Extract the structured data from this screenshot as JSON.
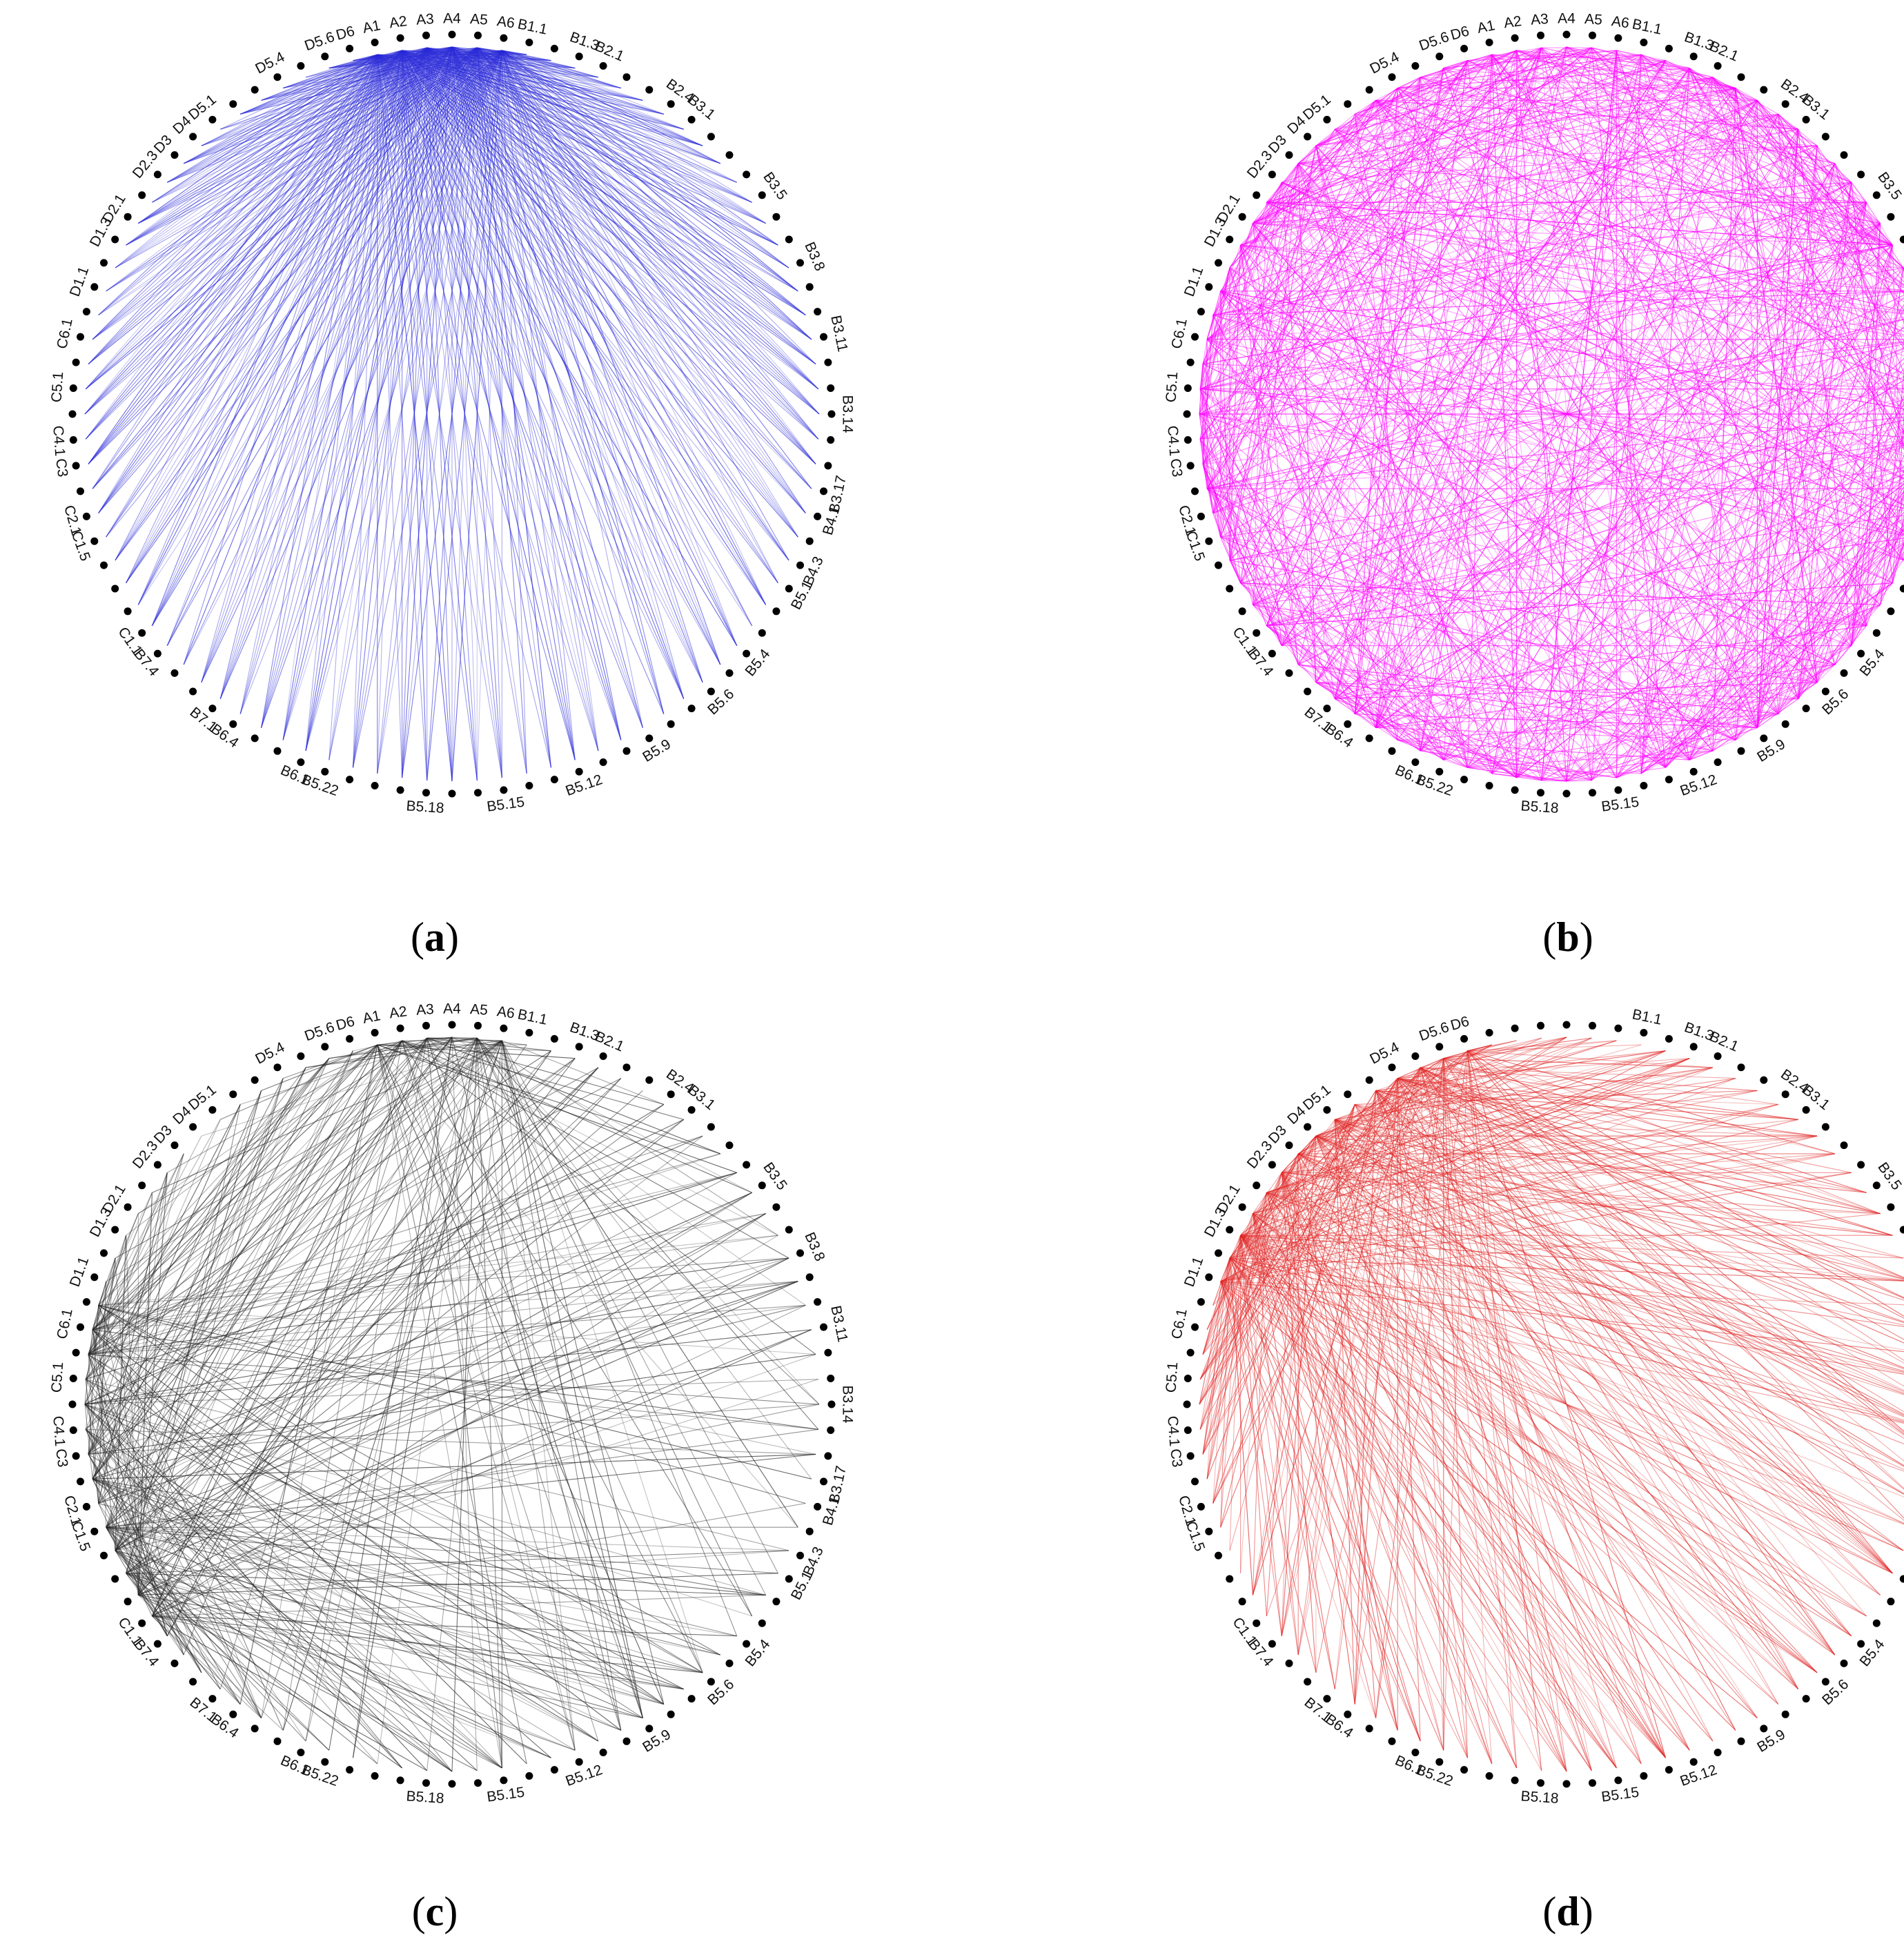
{
  "figure": {
    "nodes": [
      {
        "id": "A1"
      },
      {
        "id": "A2"
      },
      {
        "id": "A3"
      },
      {
        "id": "A4"
      },
      {
        "id": "A5"
      },
      {
        "id": "A6"
      },
      {
        "id": "B1.1"
      },
      {
        "id": "B1.2"
      },
      {
        "id": "B1.3"
      },
      {
        "id": "B2.1"
      },
      {
        "id": "B2.2"
      },
      {
        "id": "B2.3"
      },
      {
        "id": "B2.4"
      },
      {
        "id": "B3.1"
      },
      {
        "id": "B3.2"
      },
      {
        "id": "B3.3"
      },
      {
        "id": "B3.4"
      },
      {
        "id": "B3.5"
      },
      {
        "id": "B3.6"
      },
      {
        "id": "B3.7"
      },
      {
        "id": "B3.8"
      },
      {
        "id": "B3.9"
      },
      {
        "id": "B3.10"
      },
      {
        "id": "B3.11"
      },
      {
        "id": "B3.12"
      },
      {
        "id": "B3.13"
      },
      {
        "id": "B3.14"
      },
      {
        "id": "B3.15"
      },
      {
        "id": "B3.16"
      },
      {
        "id": "B3.17"
      },
      {
        "id": "B4.1"
      },
      {
        "id": "B4.2"
      },
      {
        "id": "B4.3"
      },
      {
        "id": "B5.1"
      },
      {
        "id": "B5.2"
      },
      {
        "id": "B5.3"
      },
      {
        "id": "B5.4"
      },
      {
        "id": "B5.5"
      },
      {
        "id": "B5.6"
      },
      {
        "id": "B5.7"
      },
      {
        "id": "B5.8"
      },
      {
        "id": "B5.9"
      },
      {
        "id": "B5.10"
      },
      {
        "id": "B5.11"
      },
      {
        "id": "B5.12"
      },
      {
        "id": "B5.13"
      },
      {
        "id": "B5.14"
      },
      {
        "id": "B5.15"
      },
      {
        "id": "B5.16"
      },
      {
        "id": "B5.17"
      },
      {
        "id": "B5.18"
      },
      {
        "id": "B5.19"
      },
      {
        "id": "B5.20"
      },
      {
        "id": "B5.21"
      },
      {
        "id": "B5.22"
      },
      {
        "id": "B6.1"
      },
      {
        "id": "B6.2"
      },
      {
        "id": "B6.3"
      },
      {
        "id": "B6.4"
      },
      {
        "id": "B7.1"
      },
      {
        "id": "B7.2"
      },
      {
        "id": "B7.3"
      },
      {
        "id": "B7.4"
      },
      {
        "id": "C1.1"
      },
      {
        "id": "C1.2"
      },
      {
        "id": "C1.3"
      },
      {
        "id": "C1.4"
      },
      {
        "id": "C1.5"
      },
      {
        "id": "C2.1"
      },
      {
        "id": "C2.2"
      },
      {
        "id": "C3"
      },
      {
        "id": "C4.1"
      },
      {
        "id": "C4.2"
      },
      {
        "id": "C5.1"
      },
      {
        "id": "C5.2"
      },
      {
        "id": "C6.1"
      },
      {
        "id": "C6.2"
      },
      {
        "id": "D1.1"
      },
      {
        "id": "D1.2"
      },
      {
        "id": "D1.3"
      },
      {
        "id": "D2.1"
      },
      {
        "id": "D2.2"
      },
      {
        "id": "D2.3"
      },
      {
        "id": "D3"
      },
      {
        "id": "D4"
      },
      {
        "id": "D5.1"
      },
      {
        "id": "D5.2"
      },
      {
        "id": "D5.3"
      },
      {
        "id": "D5.4"
      },
      {
        "id": "D5.5"
      },
      {
        "id": "D5.6"
      },
      {
        "id": "D6"
      }
    ],
    "labels": {
      "a": [
        "A1",
        "A2",
        "A3",
        "A4",
        "A5",
        "A6",
        "B1.1",
        "B1.3",
        "B2.1",
        "B2.4",
        "B3.1",
        "B3.5",
        "B3.8",
        "B3.11",
        "B3.14",
        "B3.17",
        "B4.1",
        "B4.3",
        "B5.1",
        "B5.4",
        "B5.6",
        "B5.9",
        "B5.12",
        "B5.15",
        "B5.18",
        "B5.22",
        "B6.1",
        "B6.4",
        "B7.1",
        "B7.4",
        "C1.1",
        "C1.5",
        "C2.1",
        "C3",
        "C4.1",
        "C5.1",
        "C6.1",
        "D1.1",
        "D1.3",
        "D2.1",
        "D2.3",
        "D3",
        "D4",
        "D5.1",
        "D5.4",
        "D5.6",
        "D6"
      ],
      "b": [
        "A1",
        "A2",
        "A3",
        "A4",
        "A5",
        "A6",
        "B1.1",
        "B1.3",
        "B2.1",
        "B2.4",
        "B3.1",
        "B3.5",
        "B3.8",
        "B3.11",
        "B3.14",
        "B3.17",
        "B4.1",
        "B4.3",
        "B5.1",
        "B5.4",
        "B5.6",
        "B5.9",
        "B5.12",
        "B5.15",
        "B5.18",
        "B5.22",
        "B6.1",
        "B6.4",
        "B7.1",
        "B7.4",
        "C1.1",
        "C1.5",
        "C2.1",
        "C3",
        "C4.1",
        "C5.1",
        "C6.1",
        "D1.1",
        "D1.3",
        "D2.1",
        "D2.3",
        "D3",
        "D4",
        "D5.1",
        "D5.4",
        "D5.6",
        "D6"
      ],
      "c": [
        "A1",
        "A2",
        "A3",
        "A4",
        "A5",
        "A6",
        "B1.1",
        "B1.3",
        "B2.1",
        "B2.4",
        "B3.1",
        "B3.5",
        "B3.8",
        "B3.11",
        "B3.14",
        "B3.17",
        "B4.1",
        "B4.3",
        "B5.1",
        "B5.4",
        "B5.6",
        "B5.9",
        "B5.12",
        "B5.15",
        "B5.18",
        "B5.22",
        "B6.1",
        "B6.4",
        "B7.1",
        "B7.4",
        "C1.1",
        "C1.5",
        "C2.1",
        "C3",
        "C4.1",
        "C5.1",
        "C6.1",
        "D1.1",
        "D1.3",
        "D2.1",
        "D2.3",
        "D3",
        "D4",
        "D5.1",
        "D5.4",
        "D5.6",
        "D6"
      ],
      "d": [
        "B1.1",
        "B1.3",
        "B2.1",
        "B2.4",
        "B3.1",
        "B3.5",
        "B3.8",
        "B3.11",
        "B3.14",
        "B3.17",
        "B4.1",
        "B4.3",
        "B5.1",
        "B5.4",
        "B5.6",
        "B5.9",
        "B5.12",
        "B5.15",
        "B5.18",
        "B5.22",
        "B6.1",
        "B6.4",
        "B7.1",
        "B7.4",
        "C1.1",
        "C1.5",
        "C2.1",
        "C3",
        "C4.1",
        "C5.1",
        "C6.1",
        "D1.1",
        "D1.3",
        "D2.1",
        "D2.3",
        "D3",
        "D4",
        "D5.1",
        "D5.4",
        "D5.6",
        "D6"
      ]
    },
    "node_color": "#000000",
    "panels": [
      {
        "id": "a",
        "caption": "(a)",
        "caption_open": "(",
        "caption_letter": "a",
        "caption_close": ")",
        "edge_color": "#2a2ad8",
        "hub_groups": [
          "A"
        ]
      },
      {
        "id": "b",
        "caption": "(b)",
        "caption_open": "(",
        "caption_letter": "b",
        "caption_close": ")",
        "edge_color": "#ff00ff",
        "hub_groups": [
          "A",
          "B",
          "C",
          "D"
        ]
      },
      {
        "id": "c",
        "caption": "(c)",
        "caption_open": "(",
        "caption_letter": "c",
        "caption_close": ")",
        "edge_color": "#222222",
        "hub_groups": [
          "C",
          "A"
        ]
      },
      {
        "id": "d",
        "caption": "(d)",
        "caption_open": "(",
        "caption_letter": "d",
        "caption_close": ")",
        "edge_color": "#e02424",
        "hub_groups": [
          "D"
        ]
      }
    ]
  }
}
